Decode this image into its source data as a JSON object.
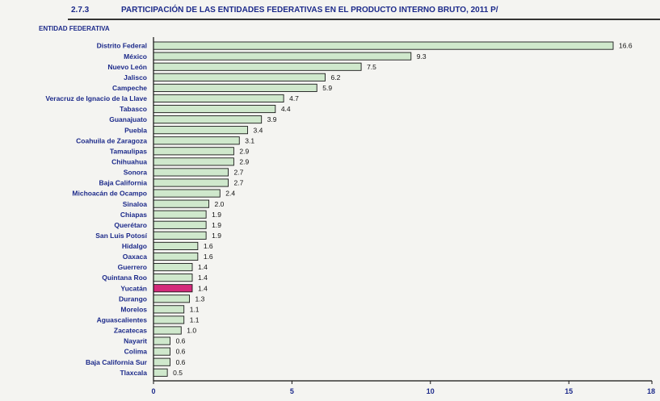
{
  "header": {
    "number": "2.7.3",
    "title": "PARTICIPACIÓN DE LAS ENTIDADES FEDERATIVAS EN EL PRODUCTO INTERNO BRUTO, 2011 P/",
    "column_label": "ENTIDAD FEDERATIVA"
  },
  "colors": {
    "bar_fill": "#cfe8cc",
    "bar_stroke": "#1a1a1a",
    "highlight_fill": "#d42a7a",
    "label_color": "#1c2a8a"
  },
  "chart_data": {
    "type": "bar",
    "orientation": "horizontal",
    "categories": [
      "Distrito Federal",
      "México",
      "Nuevo León",
      "Jalisco",
      "Campeche",
      "Veracruz de Ignacio de la Llave",
      "Tabasco",
      "Guanajuato",
      "Puebla",
      "Coahuila de Zaragoza",
      "Tamaulipas",
      "Chihuahua",
      "Sonora",
      "Baja California",
      "Michoacán de Ocampo",
      "Sinaloa",
      "Chiapas",
      "Querétaro",
      "San Luis Potosí",
      "Hidalgo",
      "Oaxaca",
      "Guerrero",
      "Quintana Roo",
      "Yucatán",
      "Durango",
      "Morelos",
      "Aguascalientes",
      "Zacatecas",
      "Nayarit",
      "Colima",
      "Baja California Sur",
      "Tlaxcala"
    ],
    "values": [
      16.6,
      9.3,
      7.5,
      6.2,
      5.9,
      4.7,
      4.4,
      3.9,
      3.4,
      3.1,
      2.9,
      2.9,
      2.7,
      2.7,
      2.4,
      2.0,
      1.9,
      1.9,
      1.9,
      1.6,
      1.6,
      1.4,
      1.4,
      1.4,
      1.3,
      1.1,
      1.1,
      1.0,
      0.6,
      0.6,
      0.6,
      0.5
    ],
    "value_labels": [
      "16.6",
      "9.3",
      "7.5",
      "6.2",
      "5.9",
      "4.7",
      "4.4",
      "3.9",
      "3.4",
      "3.1",
      "2.9",
      "2.9",
      "2.7",
      "2.7",
      "2.4",
      "2.0",
      "1.9",
      "1.9",
      "1.9",
      "1.6",
      "1.6",
      "1.4",
      "1.4",
      "1.4",
      "1.3",
      "1.1",
      "1.1",
      "1.0",
      "0.6",
      "0.6",
      "0.6",
      "0.5"
    ],
    "highlight": "Yucatán",
    "xlim": [
      0,
      18
    ],
    "xticks": [
      0,
      5,
      10,
      15,
      18
    ],
    "xtick_labels": [
      "0",
      "5",
      "10",
      "15",
      "18"
    ],
    "grid": false,
    "legend": "none"
  }
}
